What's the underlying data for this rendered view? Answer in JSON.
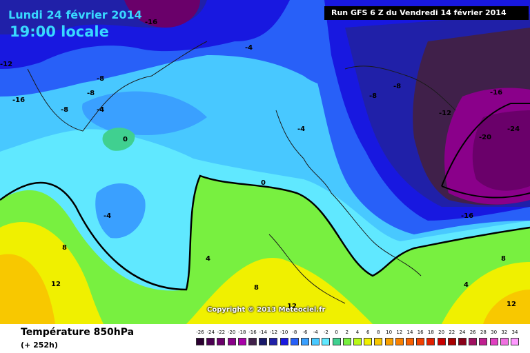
{
  "header": {
    "date_line": "Lundi 24 février 2014",
    "time_line": "19:00 locale",
    "run_info": "Run GFS 6 Z du Vendredi 14 février 2014"
  },
  "copyright": "Copyright © 2013 Meteociel.fr",
  "footer": {
    "title": "Température 850hPa",
    "subtitle": "(+ 252h)"
  },
  "scale": {
    "labels": [
      "-26",
      "-24",
      "-22",
      "-20",
      "-18",
      "-16",
      "-14",
      "-12",
      "-10",
      "-8",
      "-6",
      "-4",
      "-2",
      "0",
      "2",
      "4",
      "6",
      "8",
      "10",
      "12",
      "14",
      "16",
      "18",
      "20",
      "22",
      "24",
      "26",
      "28",
      "30",
      "32",
      "34"
    ],
    "colors": [
      "#2a0030",
      "#4a0050",
      "#6a006a",
      "#8a008a",
      "#a800a8",
      "#40204a",
      "#1a1a6a",
      "#2020a8",
      "#1818e0",
      "#2860f8",
      "#3aa0ff",
      "#48c8ff",
      "#60e8ff",
      "#40d090",
      "#78f040",
      "#b8f818",
      "#f0f000",
      "#f8c800",
      "#f8a000",
      "#f88000",
      "#f86000",
      "#f04000",
      "#e02000",
      "#c80000",
      "#a80000",
      "#880018",
      "#a01060",
      "#c02090",
      "#e040c0",
      "#f070e0",
      "#ff99ff"
    ]
  },
  "contour_labels": [
    "-16",
    "-12",
    "-16",
    "-4",
    "-8",
    "-8",
    "-8",
    "-4",
    "-8",
    "-8",
    "-16",
    "-12",
    "-20",
    "-24",
    "0",
    "-4",
    "-4",
    "0",
    "-16",
    "8",
    "4",
    "12",
    "8",
    "12",
    "8",
    "4",
    "12"
  ]
}
